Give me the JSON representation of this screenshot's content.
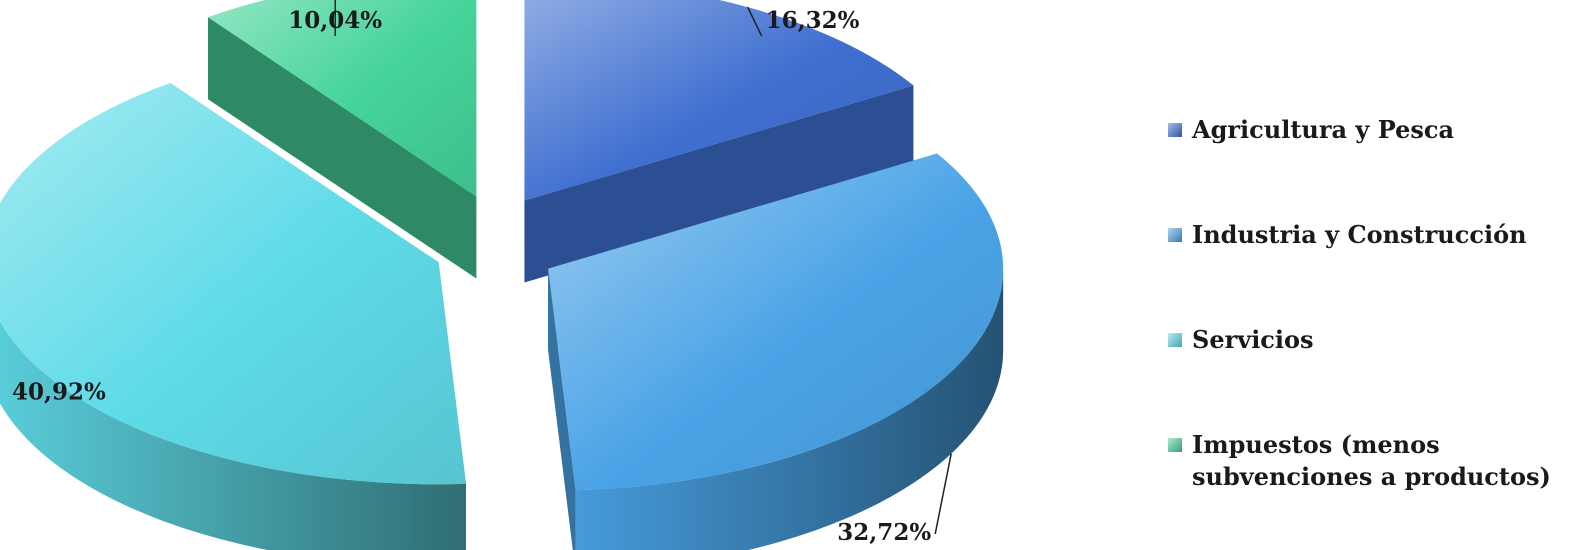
{
  "chart_data": {
    "type": "pie",
    "style": "3d-exploded",
    "title": "",
    "categories": [
      "Agricultura y Pesca",
      "Industria y Construcción",
      "Servicios",
      "Impuestos (menos subvenciones a productos)"
    ],
    "values": [
      16.32,
      32.72,
      40.92,
      10.04
    ],
    "data_labels": [
      "16,32%",
      "32,72%",
      "40,92%",
      "10,04%"
    ],
    "colors": [
      "#3f6fd0",
      "#4aa3e6",
      "#5fdbe8",
      "#45d49a"
    ],
    "legend": {
      "position": "right",
      "entries": [
        {
          "lines": [
            "Agricultura y Pesca"
          ]
        },
        {
          "lines": [
            "Industria y Construcción"
          ]
        },
        {
          "lines": [
            "Servicios"
          ]
        },
        {
          "lines": [
            "Impuestos (menos",
            "subvenciones a productos)"
          ]
        }
      ]
    }
  }
}
